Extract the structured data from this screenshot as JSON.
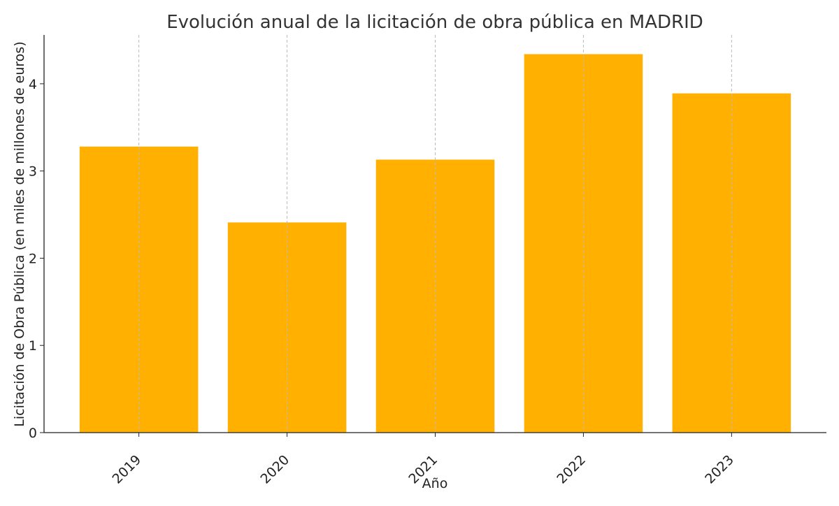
{
  "chart_data": {
    "type": "bar",
    "title": "Evolución anual de la licitación de obra pública en MADRID",
    "xlabel": "Año",
    "ylabel": "Licitación de Obra Pública (en miles de millones de euros)",
    "categories": [
      "2019",
      "2020",
      "2021",
      "2022",
      "2023"
    ],
    "values": [
      3.28,
      2.41,
      3.13,
      4.34,
      3.89
    ],
    "ylim": [
      0,
      4.56
    ],
    "yticks": [
      0,
      1,
      2,
      3,
      4
    ],
    "grid": "x-dashed",
    "bar_color": "#FFB000"
  }
}
